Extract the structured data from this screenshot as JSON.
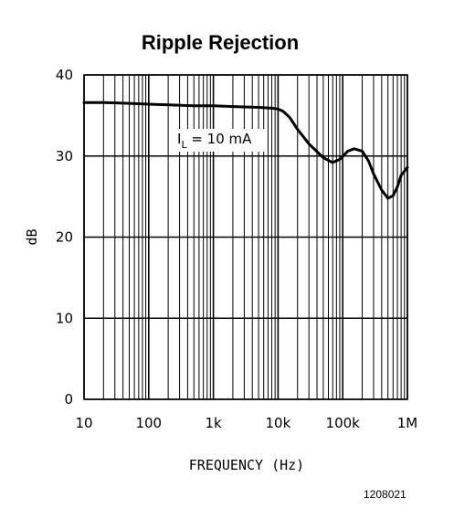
{
  "chart_data": {
    "type": "line",
    "title": "Ripple Rejection",
    "xlabel": "FREQUENCY (Hz)",
    "ylabel": "dB",
    "x_scale": "log",
    "xlim": [
      10,
      1000000
    ],
    "ylim": [
      0,
      40
    ],
    "x_ticks": [
      10,
      100,
      1000,
      10000,
      100000,
      1000000
    ],
    "x_tick_labels": [
      "10",
      "100",
      "1k",
      "10k",
      "100k",
      "1M"
    ],
    "y_ticks": [
      0,
      10,
      20,
      30,
      40
    ],
    "y_tick_labels": [
      "0",
      "10",
      "20",
      "30",
      "40"
    ],
    "grid": true,
    "annotation": {
      "main": "I",
      "sub": "L",
      "rest": " = 10 mA"
    },
    "series": [
      {
        "x": [
          10,
          20,
          50,
          100,
          200,
          500,
          1000,
          2000,
          5000,
          8000,
          10000,
          12000,
          15000,
          20000,
          30000,
          50000,
          70000,
          90000,
          120000,
          150000,
          200000,
          250000,
          300000,
          400000,
          500000,
          600000,
          700000,
          800000,
          1000000
        ],
        "y": [
          36.6,
          36.6,
          36.5,
          36.4,
          36.3,
          36.2,
          36.2,
          36.1,
          36.0,
          35.9,
          35.8,
          35.5,
          34.8,
          33.3,
          31.5,
          29.8,
          29.2,
          29.6,
          30.6,
          30.9,
          30.6,
          29.4,
          27.8,
          25.8,
          24.8,
          25.1,
          26.2,
          27.6,
          28.6
        ]
      }
    ]
  },
  "footer_code": "1208021"
}
